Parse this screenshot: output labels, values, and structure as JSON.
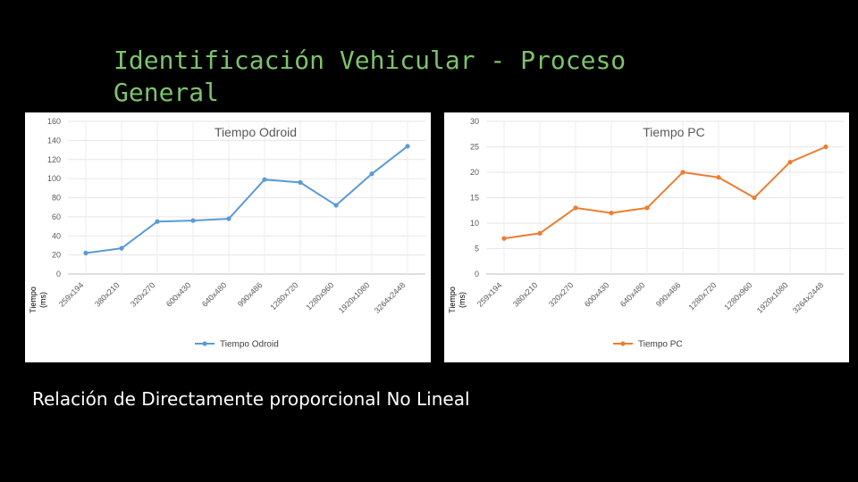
{
  "slide": {
    "title": "Identificación Vehicular - Proceso General",
    "caption": "Relación de Directamente proporcional No Lineal"
  },
  "chart_data": [
    {
      "type": "line",
      "title": "Tiempo Odroid",
      "xlabel": "",
      "ylabel": "Tiempo (ms)",
      "categories": [
        "259x194",
        "380x210",
        "320x270",
        "600x430",
        "640x480",
        "990x486",
        "1280x720",
        "1280x960",
        "1920x1080",
        "3264x2448"
      ],
      "series": [
        {
          "name": "Tiempo Odroid",
          "values": [
            22,
            27,
            55,
            56,
            58,
            99,
            96,
            72,
            105,
            134
          ],
          "color": "#5b9bd5"
        }
      ],
      "ylim": [
        0,
        160
      ],
      "yticks": [
        0,
        20,
        40,
        60,
        80,
        100,
        120,
        140,
        160
      ],
      "grid": true,
      "legend": "bottom"
    },
    {
      "type": "line",
      "title": "Tiempo PC",
      "xlabel": "",
      "ylabel": "Tiempo (ms)",
      "categories": [
        "259x194",
        "380x210",
        "320x270",
        "600x430",
        "640x480",
        "990x486",
        "1280x720",
        "1280x960",
        "1920x1080",
        "3264x2448"
      ],
      "series": [
        {
          "name": "Tiempo PC",
          "values": [
            7,
            8,
            13,
            12,
            13,
            20,
            19,
            15,
            22,
            25
          ],
          "color": "#ed7d31"
        }
      ],
      "ylim": [
        0,
        30
      ],
      "yticks": [
        0,
        5,
        10,
        15,
        20,
        25,
        30
      ],
      "grid": true,
      "legend": "bottom"
    }
  ]
}
